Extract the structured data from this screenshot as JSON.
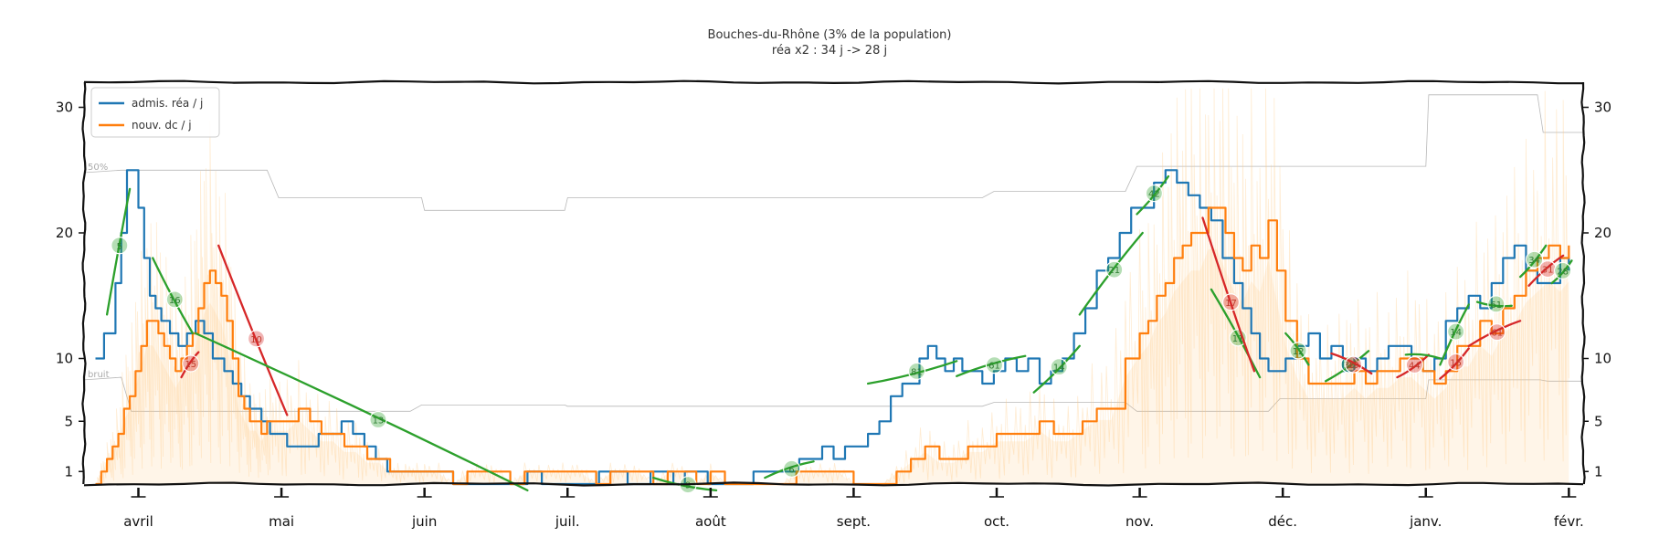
{
  "chart_data": {
    "type": "line",
    "title": "Bouches-du-Rhône (3% de la population)",
    "subtitle": "réa x2 : 34 j -> 28 j",
    "x_tick_labels": [
      "avril",
      "mai",
      "juin",
      "juil.",
      "août",
      "sept.",
      "oct.",
      "nov.",
      "déc.",
      "janv.",
      "févr."
    ],
    "x_tick_month_index": [
      0,
      1,
      2,
      3,
      4,
      5,
      6,
      7,
      8,
      9,
      10
    ],
    "xlim_month_index": [
      -0.38,
      10.1
    ],
    "ylim": [
      0,
      32
    ],
    "y_ticks": [
      1,
      5,
      10,
      20,
      30
    ],
    "y_ticks_right": [
      1,
      5,
      10,
      20,
      30
    ],
    "reference_lines": [
      {
        "label": "50%",
        "points": [
          [
            -0.38,
            24.8
          ],
          [
            -0.12,
            25
          ],
          [
            0.9,
            25
          ],
          [
            0.98,
            22.8
          ],
          [
            1.98,
            22.8
          ],
          [
            2.0,
            21.8
          ],
          [
            2.98,
            21.8
          ],
          [
            3.0,
            22.8
          ],
          [
            5.9,
            22.8
          ],
          [
            5.98,
            23.3
          ],
          [
            6.9,
            23.3
          ],
          [
            6.98,
            25.3
          ],
          [
            9.0,
            25.3
          ],
          [
            9.02,
            31
          ],
          [
            9.78,
            31
          ],
          [
            9.82,
            28
          ],
          [
            10.1,
            28
          ]
        ]
      },
      {
        "label": "bruit",
        "points": [
          [
            -0.38,
            8.3
          ],
          [
            -0.12,
            8.5
          ],
          [
            -0.05,
            5.8
          ],
          [
            1.9,
            5.8
          ],
          [
            1.98,
            6.3
          ],
          [
            2.98,
            6.3
          ],
          [
            3.0,
            6.2
          ],
          [
            5.9,
            6.2
          ],
          [
            5.98,
            6.5
          ],
          [
            6.9,
            6.5
          ],
          [
            6.98,
            5.8
          ],
          [
            7.9,
            5.8
          ],
          [
            7.98,
            6.8
          ],
          [
            9.0,
            6.8
          ],
          [
            9.02,
            8.3
          ],
          [
            9.8,
            8.3
          ],
          [
            9.85,
            8.2
          ],
          [
            10.1,
            8.2
          ]
        ]
      }
    ],
    "series": [
      {
        "name": "admis. réa / j",
        "color": "#1f77b4",
        "x": [
          -0.3,
          -0.26,
          -0.24,
          -0.2,
          -0.16,
          -0.12,
          -0.08,
          -0.04,
          0.0,
          0.04,
          0.08,
          0.12,
          0.16,
          0.22,
          0.28,
          0.34,
          0.4,
          0.46,
          0.52,
          0.6,
          0.66,
          0.72,
          0.78,
          0.86,
          0.92,
          0.98,
          1.04,
          1.1,
          1.18,
          1.26,
          1.34,
          1.42,
          1.5,
          1.58,
          1.66,
          1.74,
          1.82,
          1.9,
          2.0,
          2.1,
          2.2,
          2.35,
          2.5,
          2.62,
          2.72,
          2.82,
          2.92,
          3.02,
          3.12,
          3.22,
          3.32,
          3.42,
          3.5,
          3.58,
          3.66,
          3.74,
          3.82,
          3.9,
          3.98,
          4.06,
          4.14,
          4.22,
          4.3,
          4.38,
          4.46,
          4.54,
          4.62,
          4.7,
          4.78,
          4.86,
          4.94,
          5.02,
          5.1,
          5.18,
          5.26,
          5.34,
          5.4,
          5.46,
          5.52,
          5.58,
          5.64,
          5.7,
          5.76,
          5.82,
          5.9,
          5.98,
          6.06,
          6.14,
          6.22,
          6.3,
          6.38,
          6.46,
          6.54,
          6.62,
          6.7,
          6.78,
          6.86,
          6.94,
          7.02,
          7.1,
          7.18,
          7.26,
          7.34,
          7.42,
          7.5,
          7.58,
          7.66,
          7.72,
          7.78,
          7.84,
          7.9,
          7.96,
          8.02,
          8.1,
          8.18,
          8.26,
          8.34,
          8.42,
          8.5,
          8.58,
          8.66,
          8.74,
          8.82,
          8.9,
          8.98,
          9.06,
          9.14,
          9.22,
          9.3,
          9.38,
          9.46,
          9.54,
          9.62,
          9.7,
          9.78,
          9.86,
          9.94,
          10.0
        ],
        "y": [
          10,
          10,
          12,
          12,
          16,
          20,
          25,
          25,
          22,
          18,
          15,
          14,
          13,
          12,
          11,
          12,
          13,
          12,
          10,
          9,
          8,
          7,
          6,
          5,
          4,
          4,
          3,
          3,
          3,
          4,
          4,
          5,
          4,
          3,
          2,
          1,
          1,
          1,
          1,
          1,
          0,
          0,
          0,
          0,
          1,
          0,
          0,
          0,
          0,
          1,
          1,
          0,
          0,
          1,
          1,
          0,
          1,
          1,
          0,
          0,
          0,
          0,
          1,
          1,
          1,
          1,
          2,
          2,
          3,
          2,
          3,
          3,
          4,
          5,
          7,
          8,
          8,
          10,
          11,
          10,
          9,
          10,
          9,
          9,
          8,
          9,
          10,
          9,
          10,
          8,
          9,
          10,
          12,
          14,
          17,
          18,
          20,
          22,
          22,
          24,
          25,
          24,
          23,
          22,
          21,
          18,
          16,
          14,
          12,
          10,
          9,
          9,
          10,
          11,
          12,
          10,
          11,
          9,
          10,
          9,
          10,
          11,
          11,
          10,
          9,
          10,
          13,
          14,
          15,
          14,
          16,
          18,
          19,
          17,
          16,
          16,
          18,
          17
        ]
      },
      {
        "name": "nouv. dc / j",
        "color": "#ff7f0e",
        "x": [
          -0.3,
          -0.26,
          -0.22,
          -0.18,
          -0.14,
          -0.1,
          -0.06,
          -0.02,
          0.02,
          0.06,
          0.1,
          0.14,
          0.18,
          0.22,
          0.26,
          0.3,
          0.34,
          0.38,
          0.42,
          0.46,
          0.5,
          0.54,
          0.58,
          0.62,
          0.66,
          0.7,
          0.74,
          0.78,
          0.82,
          0.86,
          0.9,
          0.96,
          1.04,
          1.12,
          1.2,
          1.28,
          1.36,
          1.44,
          1.52,
          1.6,
          1.68,
          1.76,
          1.84,
          1.92,
          2.0,
          2.1,
          2.2,
          2.3,
          2.4,
          2.5,
          2.6,
          2.7,
          2.8,
          2.9,
          3.0,
          3.1,
          3.2,
          3.3,
          3.4,
          3.5,
          3.6,
          3.7,
          3.8,
          3.9,
          4.0,
          4.1,
          4.2,
          4.3,
          4.4,
          4.5,
          4.6,
          4.7,
          4.8,
          4.9,
          5.0,
          5.1,
          5.2,
          5.3,
          5.4,
          5.5,
          5.6,
          5.7,
          5.8,
          5.9,
          6.0,
          6.1,
          6.2,
          6.3,
          6.4,
          6.5,
          6.6,
          6.7,
          6.8,
          6.9,
          7.0,
          7.06,
          7.12,
          7.18,
          7.24,
          7.3,
          7.36,
          7.42,
          7.48,
          7.54,
          7.6,
          7.66,
          7.72,
          7.78,
          7.84,
          7.9,
          7.96,
          8.02,
          8.1,
          8.18,
          8.26,
          8.34,
          8.42,
          8.5,
          8.58,
          8.66,
          8.74,
          8.82,
          8.9,
          8.98,
          9.06,
          9.14,
          9.22,
          9.3,
          9.38,
          9.46,
          9.54,
          9.62,
          9.7,
          9.78,
          9.86,
          9.94,
          10.0
        ],
        "y": [
          0,
          1,
          2,
          3,
          4,
          6,
          7,
          9,
          11,
          13,
          13,
          12,
          11,
          10,
          9,
          10,
          11,
          12,
          14,
          16,
          17,
          16,
          15,
          13,
          10,
          7,
          6,
          5,
          5,
          4,
          5,
          5,
          5,
          6,
          5,
          4,
          4,
          3,
          3,
          2,
          2,
          1,
          1,
          1,
          1,
          1,
          0,
          1,
          1,
          1,
          0,
          1,
          1,
          1,
          1,
          1,
          0,
          1,
          1,
          1,
          0,
          1,
          1,
          0,
          1,
          0,
          0,
          0,
          0,
          0,
          1,
          1,
          1,
          1,
          0,
          0,
          0,
          1,
          2,
          3,
          2,
          2,
          3,
          3,
          4,
          4,
          4,
          5,
          4,
          4,
          5,
          6,
          6,
          10,
          12,
          13,
          15,
          16,
          18,
          19,
          20,
          20,
          22,
          22,
          20,
          18,
          17,
          19,
          18,
          21,
          17,
          13,
          10,
          8,
          8,
          8,
          8,
          9,
          8,
          9,
          9,
          10,
          10,
          9,
          8,
          9,
          11,
          11,
          13,
          12,
          14,
          15,
          17,
          18,
          19,
          18,
          19
        ]
      }
    ],
    "fits": [
      {
        "color": "#2ca02c",
        "label": "5",
        "x0": -0.22,
        "y0": 13.5,
        "x1": -0.06,
        "y1": 23.5
      },
      {
        "color": "#2ca02c",
        "label": "16",
        "x0": 0.1,
        "y0": 18,
        "x1": 0.38,
        "y1": 12
      },
      {
        "color": "#d62728",
        "label": "15",
        "x0": 0.3,
        "y0": 8.5,
        "x1": 0.42,
        "y1": 10.5
      },
      {
        "color": "#d62728",
        "label": "10",
        "x0": 0.56,
        "y0": 19,
        "x1": 1.04,
        "y1": 5.5
      },
      {
        "color": "#2ca02c",
        "label": "13",
        "x0": 0.4,
        "y0": 12,
        "x1": 2.72,
        "y1": -0.5
      },
      {
        "color": "#2ca02c",
        "label": "9",
        "x0": 3.6,
        "y0": 0.5,
        "x1": 4.04,
        "y1": -0.5
      },
      {
        "color": "#2ca02c",
        "label": "6",
        "x0": 4.38,
        "y0": 0.5,
        "x1": 4.72,
        "y1": 1.8
      },
      {
        "color": "#2ca02c",
        "label": "81",
        "x0": 5.1,
        "y0": 8,
        "x1": 5.72,
        "y1": 9.8
      },
      {
        "color": "#2ca02c",
        "label": "61",
        "x0": 5.72,
        "y0": 8.6,
        "x1": 6.2,
        "y1": 10.2
      },
      {
        "color": "#2ca02c",
        "label": "14",
        "x0": 6.26,
        "y0": 7.3,
        "x1": 6.58,
        "y1": 11
      },
      {
        "color": "#2ca02c",
        "label": "21",
        "x0": 6.58,
        "y0": 13.5,
        "x1": 7.02,
        "y1": 20
      },
      {
        "color": "#2ca02c",
        "label": "42",
        "x0": 6.98,
        "y0": 21.5,
        "x1": 7.2,
        "y1": 24.5
      },
      {
        "color": "#2ca02c",
        "label": "11",
        "x0": 7.5,
        "y0": 15.5,
        "x1": 7.84,
        "y1": 8.5
      },
      {
        "color": "#d62728",
        "label": "17",
        "x0": 7.44,
        "y0": 21.2,
        "x1": 7.8,
        "y1": 9
      },
      {
        "color": "#2ca02c",
        "label": "12",
        "x0": 8.02,
        "y0": 12,
        "x1": 8.18,
        "y1": 9.5
      },
      {
        "color": "#2ca02c",
        "label": "30",
        "x0": 8.3,
        "y0": 8.2,
        "x1": 8.6,
        "y1": 10.6
      },
      {
        "color": "#d62728",
        "label": "39",
        "x0": 8.34,
        "y0": 10.4,
        "x1": 8.62,
        "y1": 8.8
      },
      {
        "color": "#d62728",
        "label": "44",
        "x0": 8.8,
        "y0": 8.5,
        "x1": 9.02,
        "y1": 10.3
      },
      {
        "color": "#2ca02c",
        "label": "",
        "x0": 8.86,
        "y0": 10.3,
        "x1": 9.1,
        "y1": 10
      },
      {
        "color": "#d62728",
        "label": "15",
        "x0": 9.1,
        "y0": 8.4,
        "x1": 9.3,
        "y1": 10.8
      },
      {
        "color": "#2ca02c",
        "label": "14",
        "x0": 9.1,
        "y0": 9.5,
        "x1": 9.3,
        "y1": 14.3
      },
      {
        "color": "#2ca02c",
        "label": "61",
        "x0": 9.36,
        "y0": 14.5,
        "x1": 9.6,
        "y1": 14.2
      },
      {
        "color": "#d62728",
        "label": "61",
        "x0": 9.3,
        "y0": 11,
        "x1": 9.66,
        "y1": 13
      },
      {
        "color": "#2ca02c",
        "label": "34",
        "x0": 9.66,
        "y0": 16.5,
        "x1": 9.84,
        "y1": 19
      },
      {
        "color": "#d62728",
        "label": "31",
        "x0": 9.72,
        "y0": 15.8,
        "x1": 9.96,
        "y1": 18.2
      },
      {
        "color": "#2ca02c",
        "label": "28",
        "x0": 9.88,
        "y0": 16,
        "x1": 10.02,
        "y1": 17.8
      }
    ],
    "legend": {
      "position": "top-left",
      "entries": [
        "admis. réa / j",
        "nouv. dc / j"
      ]
    },
    "noise_color": "#ffc980"
  }
}
